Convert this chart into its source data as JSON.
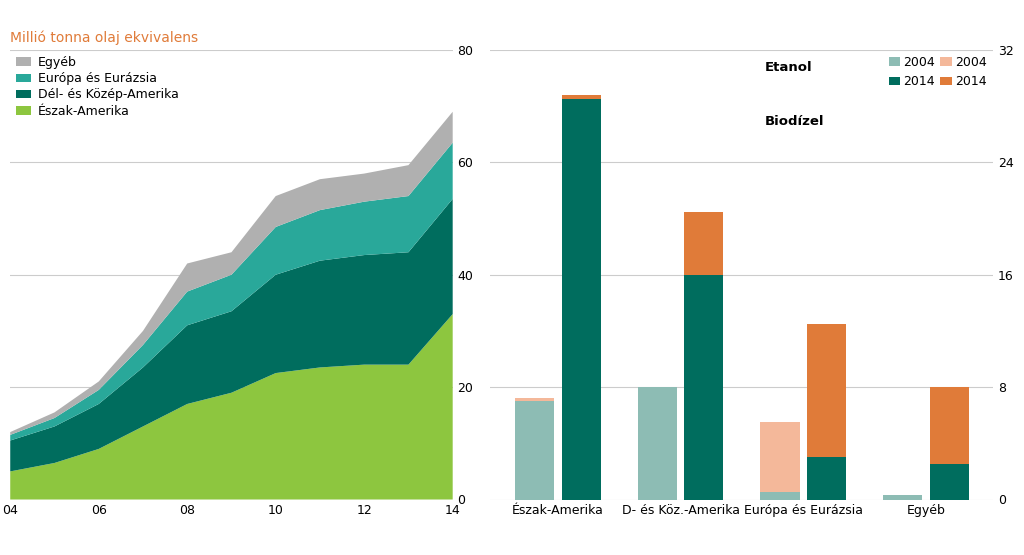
{
  "title_left": "Millió tonna olaj ekvivalens",
  "title_color": "#e07b39",
  "years": [
    2004,
    2005,
    2006,
    2007,
    2008,
    2009,
    2010,
    2011,
    2012,
    2013,
    2014
  ],
  "area_eszak_amerika": [
    5.0,
    6.5,
    9.0,
    13.0,
    17.0,
    19.0,
    22.5,
    23.5,
    24.0,
    24.0,
    33.0
  ],
  "area_del_kozep_amerika": [
    5.5,
    6.5,
    8.0,
    10.5,
    14.0,
    14.5,
    17.5,
    19.0,
    19.5,
    20.0,
    20.5
  ],
  "area_europa_eurazia": [
    1.0,
    1.5,
    2.5,
    4.0,
    6.0,
    6.5,
    8.5,
    9.0,
    9.5,
    10.0,
    10.0
  ],
  "area_egyeb": [
    0.5,
    1.0,
    1.5,
    2.5,
    5.0,
    4.0,
    5.5,
    5.5,
    5.0,
    5.5,
    5.5
  ],
  "area_colors": [
    "#8dc63f",
    "#006d5e",
    "#29a89a",
    "#b0b0b0"
  ],
  "area_labels": [
    "Észak-Amerika",
    "Dél- és Közép-Amerika",
    "Európa és Eurázsia",
    "Egyéb"
  ],
  "bar_categories": [
    "Észak-Amerika",
    "D- és Köz.-Amerika",
    "Európa és Eurázsia",
    "Egyéb"
  ],
  "etanol_2004": [
    7.0,
    8.0,
    0.5,
    0.3
  ],
  "etanol_2014": [
    28.5,
    16.0,
    3.0,
    2.5
  ],
  "biodiezel_2004": [
    0.2,
    0.0,
    5.0,
    0.0
  ],
  "biodiezel_2014": [
    0.3,
    4.5,
    9.5,
    5.5
  ],
  "bar_ylim": [
    0,
    32
  ],
  "color_etanol_2004": "#8dbcb4",
  "color_etanol_2014": "#006d5e",
  "color_biodiezel_2004": "#f4b89a",
  "color_biodiezel_2014": "#e07b39",
  "background_color": "#ffffff",
  "grid_color": "#cccccc"
}
